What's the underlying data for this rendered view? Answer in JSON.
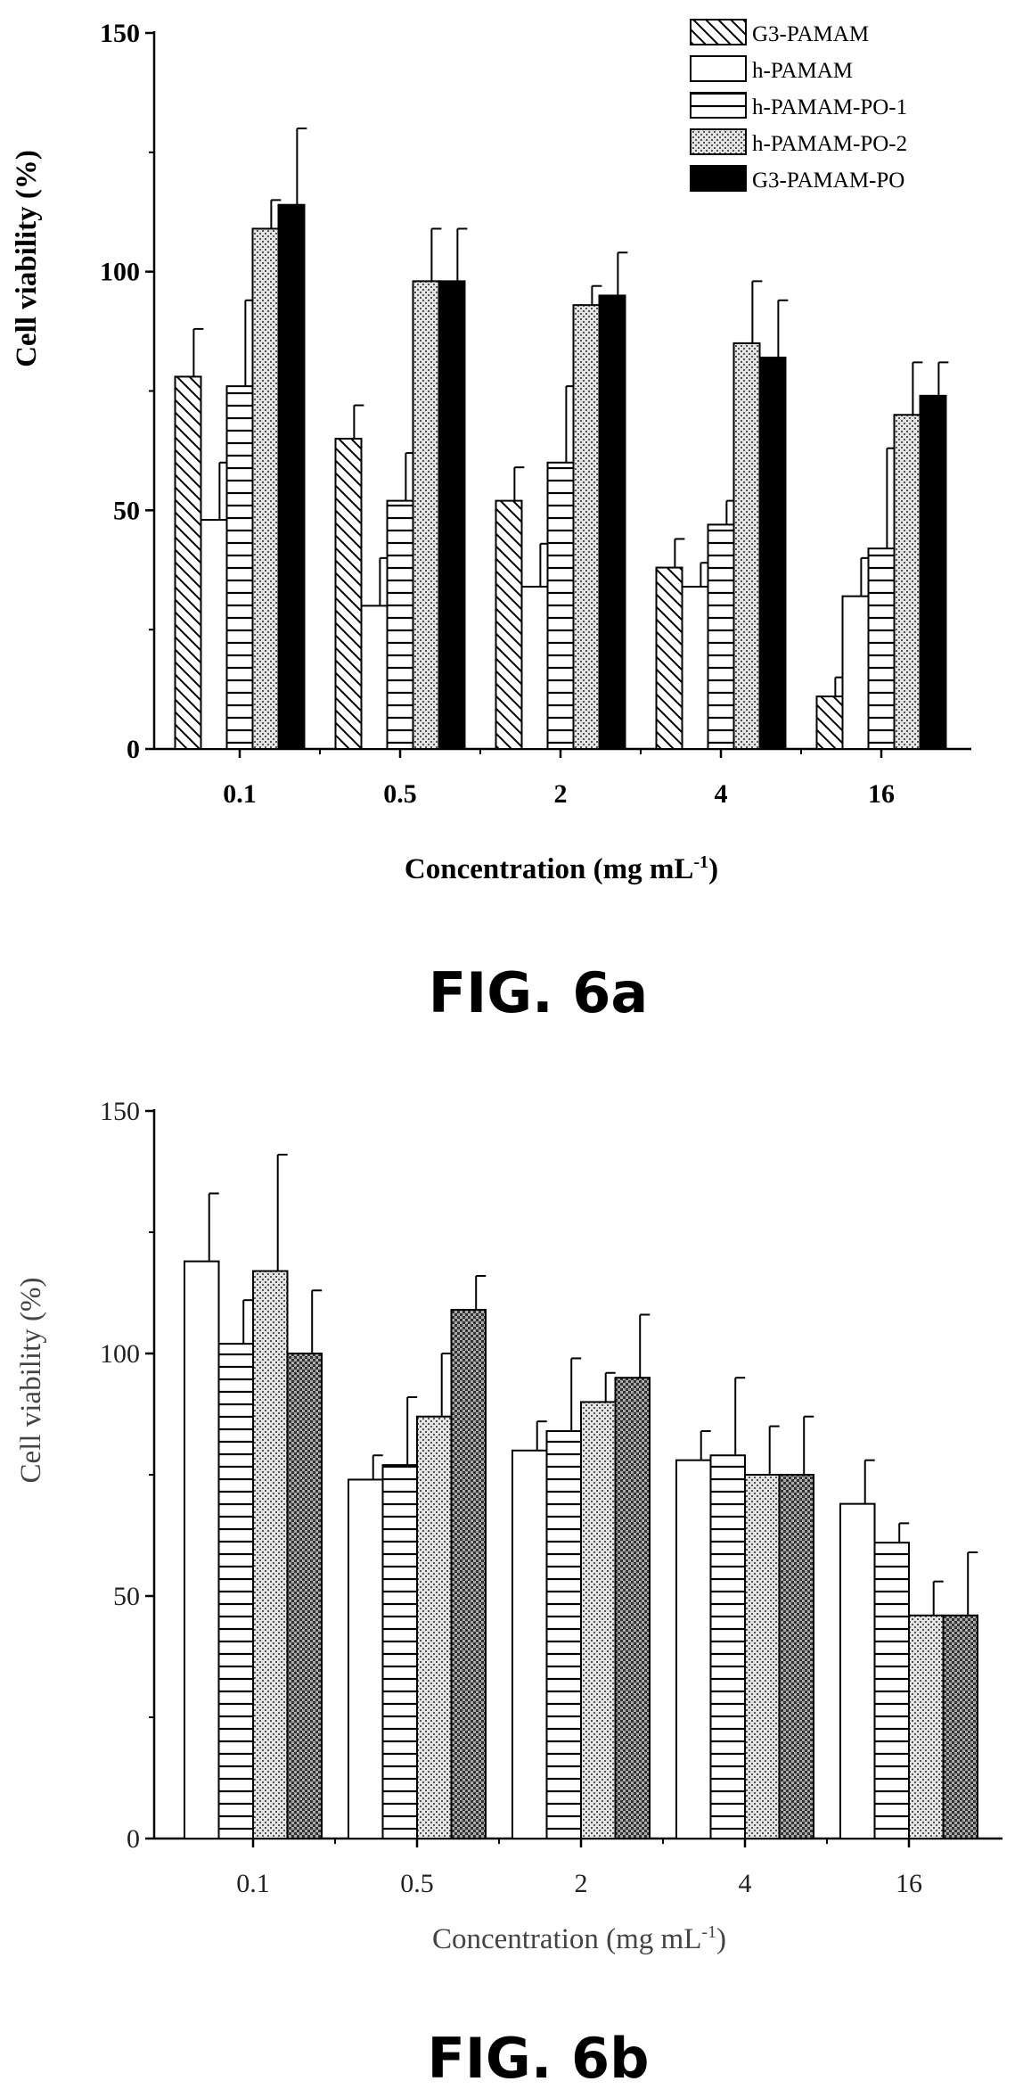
{
  "chart_data": [
    {
      "type": "bar",
      "caption": "FIG. 6a",
      "title": "",
      "xlabel": "Concentration (mg mL",
      "xlabel_sup": "-1",
      "xlabel_end": ")",
      "ylabel": "Cell viability (%)",
      "ylim": [
        0,
        150
      ],
      "yticks": [
        "0",
        "50",
        "100",
        "150"
      ],
      "categories": [
        "0.1",
        "0.5",
        "2",
        "4",
        "16"
      ],
      "legend_position": "top-right",
      "series": [
        {
          "name": "G3-PAMAM",
          "pattern": "diagonal",
          "values": [
            78,
            65,
            52,
            38,
            11
          ],
          "errors": [
            10,
            7,
            7,
            6,
            4
          ]
        },
        {
          "name": "h-PAMAM",
          "pattern": "white",
          "values": [
            48,
            30,
            34,
            34,
            32
          ],
          "errors": [
            12,
            10,
            9,
            5,
            8
          ]
        },
        {
          "name": "h-PAMAM-PO-1",
          "pattern": "hlines",
          "values": [
            76,
            52,
            60,
            47,
            42
          ],
          "errors": [
            18,
            10,
            16,
            5,
            21
          ]
        },
        {
          "name": "h-PAMAM-PO-2",
          "pattern": "dots",
          "values": [
            109,
            98,
            93,
            85,
            70
          ],
          "errors": [
            6,
            11,
            4,
            13,
            11
          ]
        },
        {
          "name": "G3-PAMAM-PO",
          "pattern": "black",
          "values": [
            114,
            98,
            95,
            82,
            74
          ],
          "errors": [
            16,
            11,
            9,
            12,
            7
          ]
        }
      ]
    },
    {
      "type": "bar",
      "caption": "FIG. 6b",
      "title": "",
      "xlabel": "Concentration (mg mL",
      "xlabel_sup": "-1",
      "xlabel_end": ")",
      "ylabel": "Cell viability (%)",
      "ylim": [
        0,
        150
      ],
      "yticks": [
        "0",
        "50",
        "100",
        "150"
      ],
      "categories": [
        "0.1",
        "0.5",
        "2",
        "4",
        "16"
      ],
      "legend_position": "none",
      "series": [
        {
          "pattern": "white",
          "values": [
            119,
            74,
            80,
            78,
            69
          ],
          "errors": [
            14,
            5,
            6,
            6,
            9
          ]
        },
        {
          "pattern": "hlines",
          "values": [
            102,
            77,
            84,
            79,
            61
          ],
          "errors": [
            9,
            14,
            15,
            16,
            4
          ]
        },
        {
          "pattern": "dots",
          "values": [
            117,
            87,
            90,
            75,
            46
          ],
          "errors": [
            24,
            13,
            6,
            10,
            7
          ]
        },
        {
          "pattern": "cross",
          "values": [
            100,
            109,
            95,
            75,
            46
          ],
          "errors": [
            13,
            7,
            13,
            12,
            13
          ]
        }
      ]
    }
  ]
}
